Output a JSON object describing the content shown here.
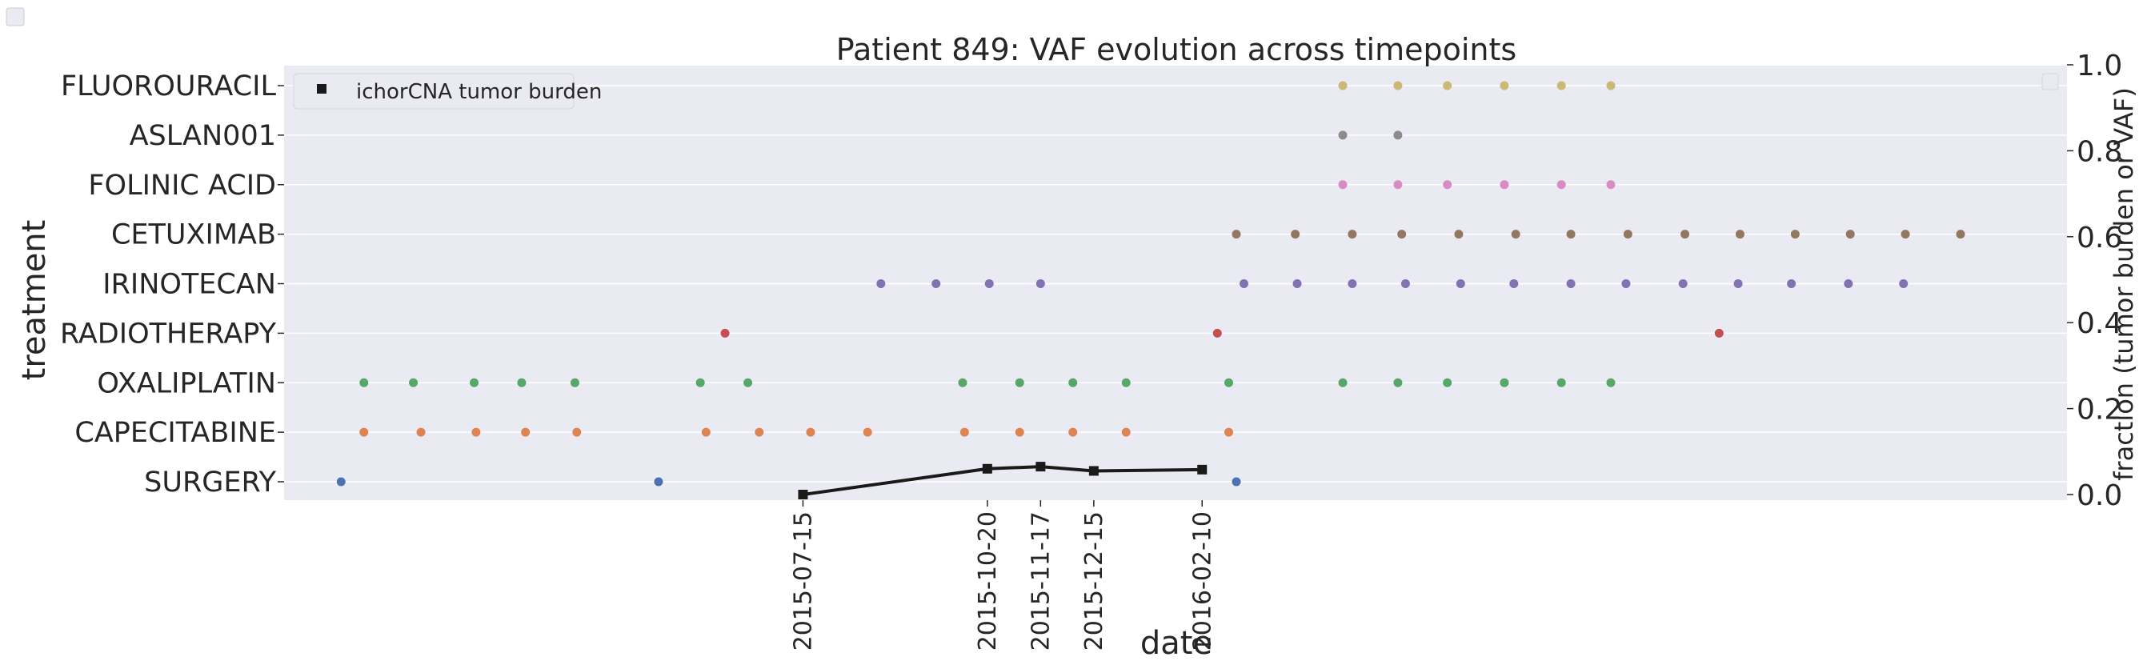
{
  "chart_data": {
    "type": "scatter",
    "title": "Patient 849: VAF evolution across timepoints",
    "xlabel": "date",
    "ylabel": "treatment",
    "y2label": "fraction (tumor burden or VAF)",
    "y2lim": [
      0.0,
      1.0
    ],
    "y2ticks": [
      "0.0",
      "0.2",
      "0.4",
      "0.6",
      "0.8",
      "1.0"
    ],
    "x_tick_labels": [
      "2015-07-15",
      "2015-10-20",
      "2015-11-17",
      "2015-12-15",
      "2016-02-10"
    ],
    "grid": true,
    "legend": {
      "placement": "upper-left",
      "entries": [
        "ichorCNA tumor burden"
      ]
    },
    "categories": [
      "SURGERY",
      "CAPECITABINE",
      "OXALIPLATIN",
      "RADIOTHERAPY",
      "IRINOTECAN",
      "CETUXIMAB",
      "FOLINIC ACID",
      "ASLAN001",
      "FLUOROURACIL"
    ],
    "colors": {
      "SURGERY": "#4c72b0",
      "CAPECITABINE": "#dd8452",
      "OXALIPLATIN": "#55a868",
      "RADIOTHERAPY": "#c44e52",
      "IRINOTECAN": "#8172b3",
      "CETUXIMAB": "#937860",
      "FOLINIC ACID": "#da8bc3",
      "ASLAN001": "#8c8c8c",
      "FLUOROURACIL": "#ccb974",
      "tumor_burden": "#1a1a1a"
    },
    "treatment_events": [
      {
        "treatment": "SURGERY",
        "dates": [
          "2014-11-14",
          "2015-04-30",
          "2016-02-28"
        ]
      },
      {
        "treatment": "CAPECITABINE",
        "dates": [
          "2014-11-26",
          "2014-12-26",
          "2015-01-24",
          "2015-02-19",
          "2015-03-18",
          "2015-05-25",
          "2015-06-22",
          "2015-07-19",
          "2015-08-18",
          "2015-10-08",
          "2015-11-06",
          "2015-12-04",
          "2016-01-01",
          "2016-02-24"
        ]
      },
      {
        "treatment": "OXALIPLATIN",
        "dates": [
          "2014-11-26",
          "2014-12-22",
          "2015-01-23",
          "2015-02-17",
          "2015-03-17",
          "2015-05-22",
          "2015-06-16",
          "2015-10-07",
          "2015-11-06",
          "2015-12-04",
          "2016-01-01",
          "2016-02-24",
          "2016-04-24",
          "2016-05-23",
          "2016-06-18",
          "2016-07-18",
          "2016-08-17",
          "2016-09-12"
        ]
      },
      {
        "treatment": "RADIOTHERAPY",
        "dates": [
          "2015-06-04",
          "2016-02-18",
          "2016-11-08"
        ]
      },
      {
        "treatment": "IRINOTECAN",
        "dates": [
          "2015-08-25",
          "2015-09-23",
          "2015-10-21",
          "2015-11-17",
          "2016-03-03",
          "2016-03-31",
          "2016-04-29",
          "2016-05-27",
          "2016-06-25",
          "2016-07-23",
          "2016-08-22",
          "2016-09-20",
          "2016-10-20",
          "2016-11-18",
          "2016-12-16",
          "2017-01-15",
          "2017-02-13"
        ]
      },
      {
        "treatment": "CETUXIMAB",
        "dates": [
          "2016-02-28",
          "2016-03-30",
          "2016-04-29",
          "2016-05-25",
          "2016-06-24",
          "2016-07-24",
          "2016-08-22",
          "2016-09-21",
          "2016-10-21",
          "2016-11-19",
          "2016-12-18",
          "2017-01-16",
          "2017-02-14",
          "2017-03-15"
        ]
      },
      {
        "treatment": "FOLINIC ACID",
        "dates": [
          "2016-04-24",
          "2016-05-23",
          "2016-06-18",
          "2016-07-18",
          "2016-08-17",
          "2016-09-12"
        ]
      },
      {
        "treatment": "ASLAN001",
        "dates": [
          "2016-04-24",
          "2016-05-23"
        ]
      },
      {
        "treatment": "FLUOROURACIL",
        "dates": [
          "2016-04-24",
          "2016-05-23",
          "2016-06-18",
          "2016-07-18",
          "2016-08-17",
          "2016-09-12"
        ]
      }
    ],
    "series": [
      {
        "name": "ichorCNA tumor burden",
        "x": [
          "2015-07-15",
          "2015-10-20",
          "2015-11-17",
          "2015-12-15",
          "2016-02-10"
        ],
        "values": [
          0.0,
          0.06,
          0.065,
          0.055,
          0.058
        ]
      }
    ]
  }
}
